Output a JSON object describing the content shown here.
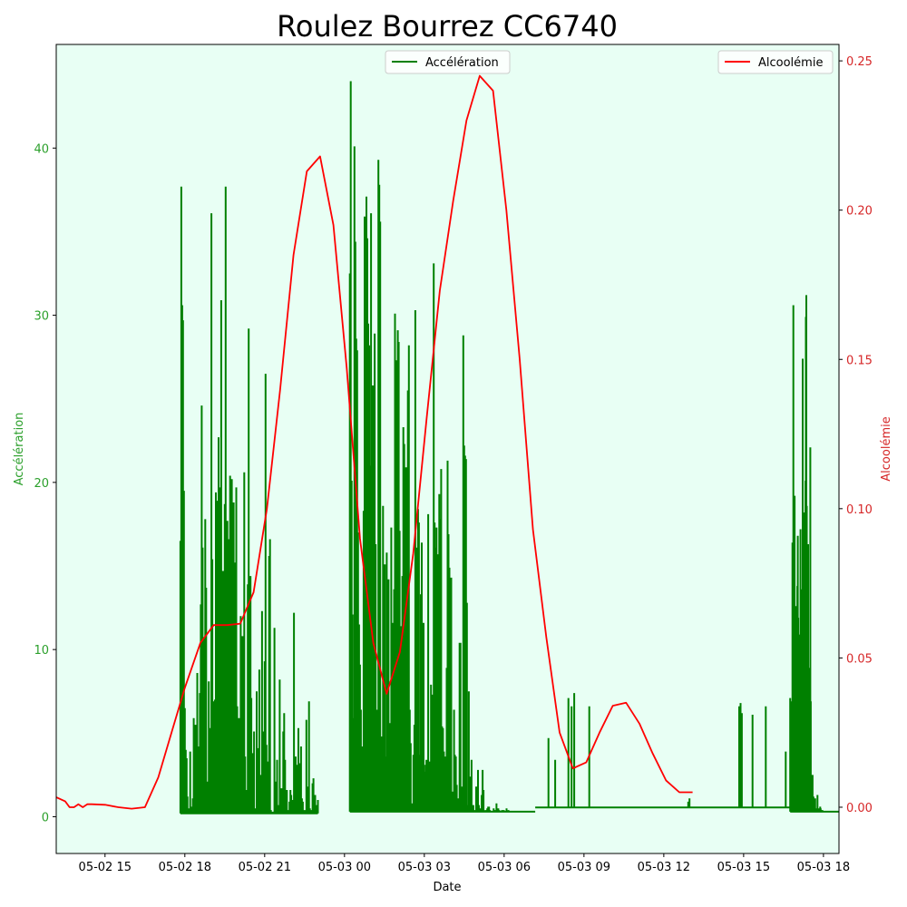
{
  "chart_data": {
    "type": "line",
    "title": "Roulez Bourrez CC6740",
    "xlabel": "Date",
    "x_ticks": [
      "05-02 15",
      "05-02 18",
      "05-02 21",
      "05-03 00",
      "05-03 03",
      "05-03 06",
      "05-03 09",
      "05-03 12",
      "05-03 15",
      "05-03 18"
    ],
    "xlim": [
      "2024-05-02T13:10",
      "2024-05-03T18:35"
    ],
    "y_left": {
      "label": "Accélération",
      "ylim": [
        -2.2,
        46.2
      ],
      "ticks": [
        0,
        10,
        20,
        30,
        40
      ],
      "color": "#2ca02c"
    },
    "y_right": {
      "label": "Alcoolémie",
      "ylim": [
        -0.0155,
        0.2555
      ],
      "ticks": [
        "0.00",
        "0.05",
        "0.10",
        "0.15",
        "0.20",
        "0.25"
      ],
      "color": "#d62728"
    },
    "background": "#e8fff4",
    "legend": {
      "left": "top-center",
      "right": "top-right"
    },
    "series": [
      {
        "name": "Alcoolémie",
        "axis": "right",
        "color": "#ff0000",
        "x": [
          "2024-05-02T13:00",
          "2024-05-02T13:30",
          "2024-05-02T13:40",
          "2024-05-02T13:50",
          "2024-05-02T14:00",
          "2024-05-02T14:10",
          "2024-05-02T14:20",
          "2024-05-02T14:30",
          "2024-05-02T15:00",
          "2024-05-02T15:30",
          "2024-05-02T16:00",
          "2024-05-02T16:30",
          "2024-05-02T17:00",
          "2024-05-02T17:30",
          "2024-05-02T18:00",
          "2024-05-02T18:35",
          "2024-05-02T19:05",
          "2024-05-02T19:35",
          "2024-05-02T20:05",
          "2024-05-02T20:35",
          "2024-05-02T21:05",
          "2024-05-02T21:35",
          "2024-05-02T22:05",
          "2024-05-02T22:35",
          "2024-05-02T23:05",
          "2024-05-02T23:35",
          "2024-05-03T00:05",
          "2024-05-03T00:35",
          "2024-05-03T01:05",
          "2024-05-03T01:35",
          "2024-05-03T02:05",
          "2024-05-03T02:35",
          "2024-05-03T03:05",
          "2024-05-03T03:35",
          "2024-05-03T04:05",
          "2024-05-03T04:35",
          "2024-05-03T05:05",
          "2024-05-03T05:35",
          "2024-05-03T06:05",
          "2024-05-03T06:35",
          "2024-05-03T07:05",
          "2024-05-03T07:35",
          "2024-05-03T08:05",
          "2024-05-03T08:35",
          "2024-05-03T09:05",
          "2024-05-03T09:35",
          "2024-05-03T10:05",
          "2024-05-03T10:35",
          "2024-05-03T11:05",
          "2024-05-03T11:35",
          "2024-05-03T12:05",
          "2024-05-03T12:35",
          "2024-05-03T13:05"
        ],
        "values": [
          0.004,
          0.002,
          0.0,
          0.0,
          0.001,
          0.0,
          0.001,
          0.001,
          0.0008,
          0.0,
          -0.0005,
          0.0,
          0.01,
          0.025,
          0.04,
          0.055,
          0.061,
          0.061,
          0.0615,
          0.072,
          0.1,
          0.14,
          0.185,
          0.213,
          0.218,
          0.195,
          0.147,
          0.09,
          0.055,
          0.038,
          0.052,
          0.085,
          0.13,
          0.173,
          0.203,
          0.23,
          0.245,
          0.24,
          0.2,
          0.15,
          0.093,
          0.057,
          0.025,
          0.013,
          0.015,
          0.025,
          0.034,
          0.035,
          0.028,
          0.018,
          0.009,
          0.005,
          0.005
        ]
      },
      {
        "name": "Accélération",
        "axis": "left",
        "color": "#008000",
        "segments": [
          {
            "start": "2024-05-02T17:50",
            "end": "2024-05-02T23:00",
            "step_min": 2,
            "baseline": 0.2,
            "values": [
              16.5,
              37.7,
              30.6,
              29.7,
              19.5,
              6.5,
              4.0,
              3.5,
              1.2,
              0.5,
              0.4,
              3.9,
              0.6,
              0.4,
              1.1,
              5.9,
              0.3,
              5.5,
              0.8,
              8.6,
              4.2,
              2.3,
              7.4,
              12.7,
              24.6,
              16.1,
              10.7,
              1.5,
              17.8,
              13.7,
              2.1,
              0.4,
              8.1,
              3.0,
              5.3,
              36.1,
              15.4,
              3.4,
              6.9,
              7.0,
              19.4,
              18.9,
              18.3,
              22.7,
              19.7,
              1.3,
              30.9,
              3.5,
              14.7,
              1.4,
              18.7,
              37.7,
              10.9,
              17.7,
              16.6,
              10.4,
              20.4,
              5.9,
              20.2,
              3.3,
              18.8,
              15.2,
              13.1,
              19.7,
              6.6,
              2.7,
              5.9,
              0.3,
              12.0,
              8.6,
              10.8,
              7.1,
              20.6,
              3.6,
              1.6,
              1.0,
              13.9,
              29.2,
              1.8,
              14.4,
              7.1,
              3.8,
              2.8,
              5.1,
              0.4,
              0.5,
              7.5,
              4.1,
              1.4,
              8.8,
              2.5,
              0.3,
              12.3,
              4.5,
              5.1,
              9.3,
              26.5,
              4.3,
              2.1,
              3.3,
              15.6,
              16.6,
              0.4,
              0.3,
              0.3,
              0.3,
              11.3,
              2.1,
              0.8,
              3.4,
              0.7,
              0.6,
              8.2,
              0.8,
              1.7,
              0.6,
              5.1,
              6.2,
              3.4,
              0.3,
              1.6,
              0.4,
              0.3,
              0.9,
              1.6,
              1.3,
              0.2,
              1.0,
              12.2,
              0.4,
              3.6,
              3.1,
              0.7,
              5.3,
              3.2,
              0.4,
              4.2,
              1.1,
              0.9,
              0.4,
              0.4,
              0.3,
              5.8,
              0.3,
              1.8,
              6.9,
              0.5,
              0.4,
              0.3,
              2.0,
              2.3,
              0.6,
              1.3,
              0.7,
              0.7,
              1.0
            ]
          },
          {
            "start": "2024-05-03T00:12",
            "end": "2024-05-03T07:10",
            "step_min": 2,
            "baseline": 0.3,
            "values": [
              32.5,
              44.0,
              20.1,
              12.1,
              5.9,
              40.1,
              34.4,
              28.6,
              27.9,
              17.0,
              11.5,
              9.1,
              6.4,
              4.2,
              3.0,
              18.3,
              35.9,
              8.1,
              37.1,
              34.6,
              29.5,
              28.2,
              21.0,
              36.1,
              16.8,
              25.8,
              20.0,
              28.9,
              16.3,
              6.4,
              6.0,
              39.3,
              37.8,
              35.6,
              4.8,
              3.8,
              18.6,
              14.4,
              15.1,
              3.6,
              15.8,
              13.1,
              14.2,
              5.3,
              5.6,
              17.3,
              11.6,
              6.9,
              13.6,
              30.1,
              9.8,
              27.3,
              29.1,
              28.4,
              17.1,
              11.4,
              6.5,
              14.4,
              23.3,
              22.3,
              3.6,
              20.9,
              8.3,
              25.5,
              28.2,
              6.4,
              4.4,
              0.8,
              0.8,
              3.7,
              5.5,
              30.3,
              16.1,
              15.1,
              18.4,
              17.6,
              3.7,
              13.3,
              16.4,
              1.9,
              11.6,
              2.7,
              3.1,
              3.4,
              2.2,
              18.1,
              2.8,
              3.3,
              7.9,
              7.3,
              6.6,
              33.1,
              17.6,
              16.1,
              17.3,
              14.3,
              15.7,
              19.3,
              17.8,
              20.8,
              5.4,
              5.3,
              3.9,
              1.6,
              3.6,
              8.9,
              21.3,
              16.9,
              14.9,
              13.2,
              14.3,
              1.5,
              0.8,
              6.4,
              3.7,
              3.6,
              1.9,
              1.1,
              0.3,
              10.4,
              10.4,
              0.8,
              1.8,
              28.8,
              22.2,
              21.6,
              21.4,
              12.8,
              0.7,
              7.5,
              0.3,
              2.4,
              3.4,
              0.5,
              0.7,
              0.4,
              0.4,
              1.8,
              0.3,
              2.8,
              0.7,
              0.5,
              0.3,
              1.3,
              2.8,
              1.6,
              0.3,
              0.4,
              0.3,
              0.5,
              0.6,
              0.6,
              0.4,
              0.3,
              0.3,
              0.3,
              0.5,
              0.3,
              0.4,
              0.8,
              0.3,
              0.5,
              0.4,
              0.3,
              0.3,
              0.4,
              0.3,
              0.4,
              0.3,
              0.3,
              0.5,
              0.3,
              0.4,
              0.3,
              0.3,
              0.3,
              0.3,
              0.3,
              0.3,
              0.3,
              0.3,
              0.3,
              0.3,
              0.3,
              0.3,
              0.3,
              0.3,
              0.3,
              0.3,
              0.3,
              0.3,
              0.3,
              0.3,
              0.3,
              0.3,
              0.3,
              0.3,
              0.3,
              0.3,
              0.3,
              0.3,
              0.3
            ]
          },
          {
            "start": "2024-05-03T07:10",
            "end": "2024-05-03T16:45",
            "step_min": 1,
            "baseline": 0.55,
            "spikes": [
              [
                "2024-05-03T07:40",
                4.7
              ],
              [
                "2024-05-03T07:55",
                3.4
              ],
              [
                "2024-05-03T08:25",
                7.1
              ],
              [
                "2024-05-03T08:32",
                6.6
              ],
              [
                "2024-05-03T08:38",
                7.4
              ],
              [
                "2024-05-03T09:12",
                6.6
              ],
              [
                "2024-05-03T12:55",
                0.9
              ],
              [
                "2024-05-03T12:58",
                1.1
              ],
              [
                "2024-05-03T14:50",
                6.6
              ],
              [
                "2024-05-03T14:53",
                6.8
              ],
              [
                "2024-05-03T14:56",
                6.2
              ],
              [
                "2024-05-03T15:20",
                6.1
              ],
              [
                "2024-05-03T15:50",
                6.6
              ],
              [
                "2024-05-03T16:35",
                3.9
              ]
            ]
          },
          {
            "start": "2024-05-03T16:45",
            "end": "2024-05-03T18:35",
            "step_min": 1,
            "baseline": 0.3,
            "values": [
              7.1,
              1.1,
              0.8,
              6.9,
              5.8,
              16.4,
              6.3,
              30.6,
              4.3,
              1.1,
              19.2,
              2.3,
              7.3,
              0.8,
              12.6,
              11.8,
              13.8,
              16.8,
              11.9,
              10.9,
              10.1,
              10.9,
              4.6,
              17.2,
              5.5,
              13.6,
              5.3,
              0.8,
              27.4,
              3.1,
              0.7,
              3.1,
              18.2,
              14.5,
              20.1,
              29.9,
              31.2,
              18.6,
              6.8,
              11.1,
              16.3,
              2.6,
              4.5,
              8.9,
              1.7,
              22.1,
              6.9,
              0.5,
              0.3,
              0.4,
              2.5,
              0.3,
              1.2,
              0.4,
              0.3,
              0.8,
              1.1,
              0.3,
              0.5,
              0.3,
              0.4,
              1.3,
              0.3,
              0.5,
              0.3,
              0.3,
              0.3,
              0.6,
              0.5,
              0.3,
              0.3,
              0.3,
              0.4,
              0.3,
              0.3,
              0.3,
              0.3,
              0.3,
              0.3,
              0.3,
              0.3,
              0.3,
              0.3,
              0.3,
              0.3,
              0.3,
              0.3,
              0.3,
              0.3,
              0.3,
              0.3,
              0.3,
              0.3,
              0.3,
              0.3,
              0.3,
              0.3,
              0.3,
              0.3,
              0.3,
              0.3,
              0.3,
              0.3,
              0.3,
              0.3,
              0.3,
              0.3,
              0.3,
              0.3,
              0.3
            ]
          }
        ]
      }
    ]
  }
}
